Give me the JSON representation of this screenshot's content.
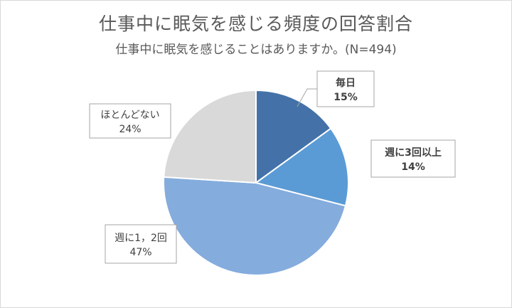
{
  "chart_data": {
    "type": "pie",
    "title": "仕事中に眠気を感じる頻度の回答割合",
    "subtitle": "仕事中に眠気を感じることはありますか。(N=494)",
    "slices": [
      {
        "label": "毎日",
        "value": 15,
        "value_label": "15%",
        "color": "#4472a8",
        "bold": true
      },
      {
        "label": "週に3回以上",
        "value": 14,
        "value_label": "14%",
        "color": "#5b9bd5",
        "bold": true
      },
      {
        "label": "週に1，2回",
        "value": 47,
        "value_label": "47%",
        "color": "#84acdd",
        "bold": false
      },
      {
        "label": "ほとんどない",
        "value": 24,
        "value_label": "24%",
        "color": "#d9d9d9",
        "bold": false
      }
    ]
  }
}
